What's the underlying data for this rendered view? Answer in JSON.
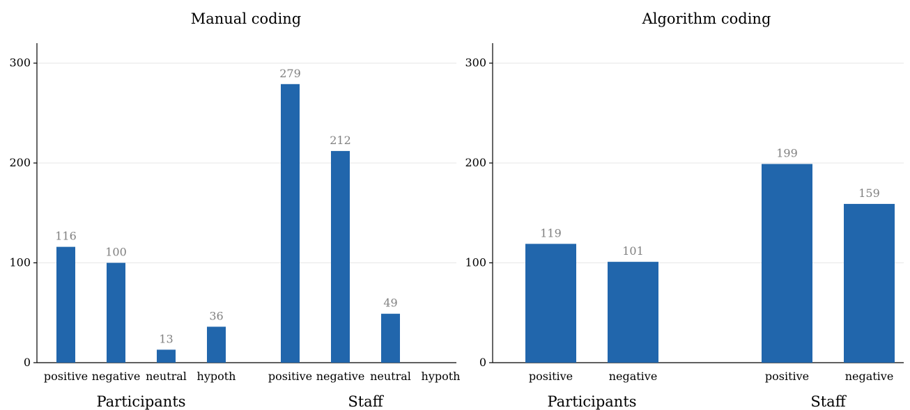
{
  "colors": {
    "bar": "#2166ac",
    "data_label": "#808080",
    "grid": "#e6e6e6"
  },
  "chart_data": [
    {
      "type": "bar",
      "title": "Manual coding",
      "ylim": [
        0,
        320
      ],
      "yticks": [
        0,
        100,
        200,
        300
      ],
      "grid": true,
      "groups": [
        {
          "name": "Participants",
          "categories": [
            "positive",
            "negative",
            "neutral",
            "hypoth"
          ],
          "values": [
            116,
            100,
            13,
            36
          ]
        },
        {
          "name": "Staff",
          "categories": [
            "positive",
            "negative",
            "neutral",
            "hypoth"
          ],
          "values": [
            279,
            212,
            49,
            0
          ]
        }
      ]
    },
    {
      "type": "bar",
      "title": "Algorithm coding",
      "ylim": [
        0,
        320
      ],
      "yticks": [
        0,
        100,
        200,
        300
      ],
      "grid": true,
      "groups": [
        {
          "name": "Participants",
          "categories": [
            "positive",
            "negative"
          ],
          "values": [
            119,
            101
          ]
        },
        {
          "name": "Staff",
          "categories": [
            "positive",
            "negative"
          ],
          "values": [
            199,
            159
          ]
        }
      ]
    }
  ]
}
